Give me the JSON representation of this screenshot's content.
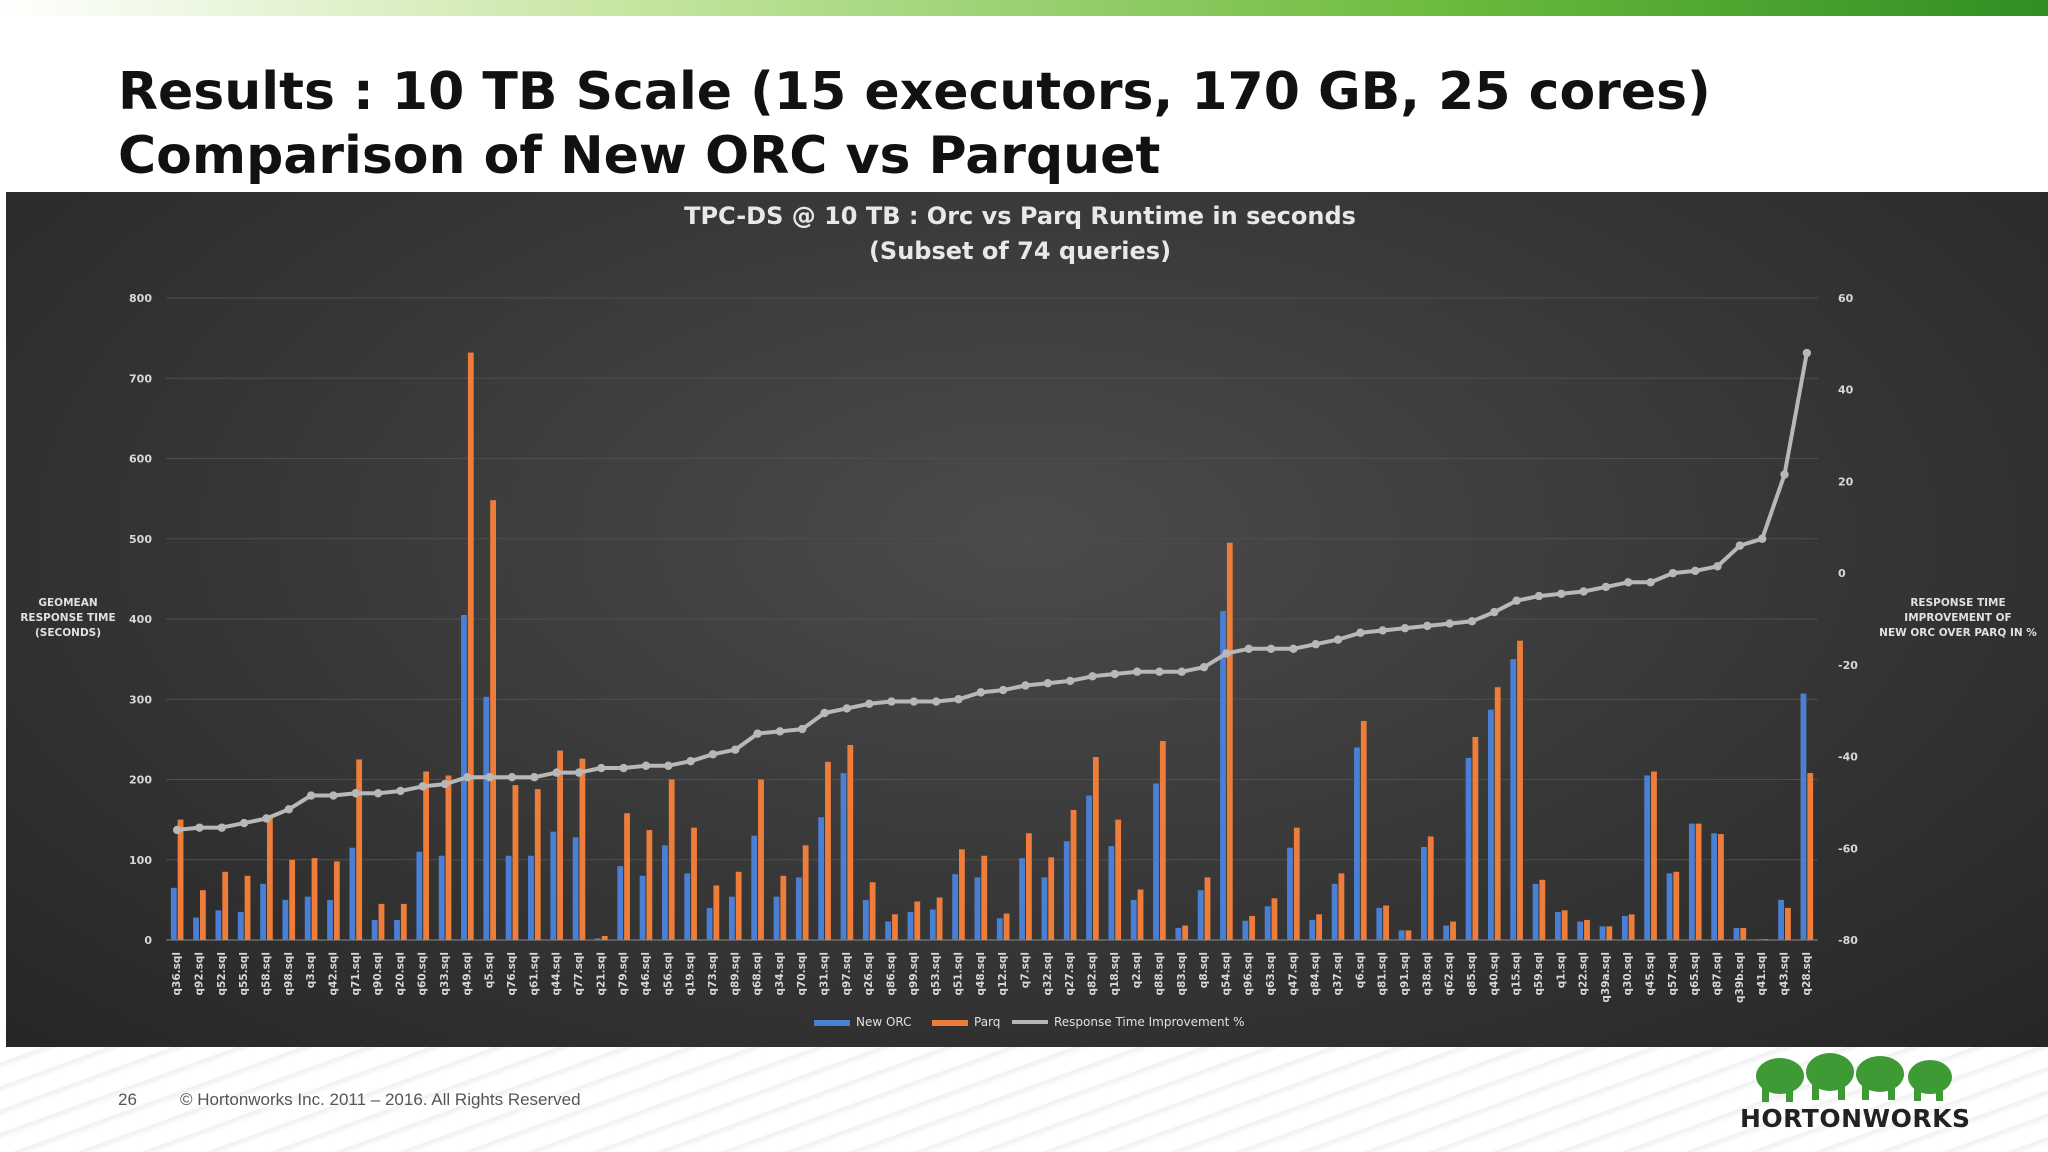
{
  "slide": {
    "title_line1": "Results : 10 TB Scale (15 executors, 170 GB, 25 cores)",
    "title_line2": "Comparison of New ORC vs Parquet",
    "page_number": "26",
    "copyright": "© Hortonworks Inc. 2011 – 2016. All Rights Reserved",
    "logo_text": "HORTONWORKS",
    "colors": {
      "accent": "#6dbb3f",
      "orc": "#4a7fd4",
      "parq": "#ee7d3c",
      "line": "#b8b8b8",
      "panel": "#363636"
    }
  },
  "chart_data": {
    "type": "bar",
    "title_line1": "TPC-DS @ 10 TB : Orc vs Parq Runtime in seconds",
    "title_line2": "(Subset of 74 queries)",
    "ylabel_left": [
      "GEOMEAN",
      "RESPONSE TIME",
      "(SECONDS)"
    ],
    "ylabel_right": [
      "RESPONSE TIME",
      "IMPROVEMENT OF",
      "NEW ORC OVER PARQ IN %"
    ],
    "ylim_left": [
      0,
      800
    ],
    "yticks_left": [
      0,
      100,
      200,
      300,
      400,
      500,
      600,
      700,
      800
    ],
    "ylim_right": [
      -80,
      60
    ],
    "yticks_right": [
      -80,
      -60,
      -40,
      -20,
      0,
      20,
      40,
      60
    ],
    "grid": true,
    "legend_position": "bottom",
    "categories": [
      "q36.sql",
      "q92.sql",
      "q52.sql",
      "q55.sql",
      "q58.sql",
      "q98.sql",
      "q3.sql",
      "q42.sql",
      "q71.sql",
      "q90.sql",
      "q20.sql",
      "q60.sql",
      "q33.sql",
      "q49.sql",
      "q5.sql",
      "q76.sql",
      "q61.sql",
      "q44.sql",
      "q77.sql",
      "q21.sql",
      "q79.sql",
      "q46.sql",
      "q56.sql",
      "q19.sql",
      "q73.sql",
      "q89.sql",
      "q68.sql",
      "q34.sql",
      "q70.sql",
      "q31.sql",
      "q97.sql",
      "q26.sql",
      "q86.sql",
      "q99.sql",
      "q53.sql",
      "q51.sql",
      "q48.sql",
      "q12.sql",
      "q7.sql",
      "q32.sql",
      "q27.sql",
      "q82.sql",
      "q18.sql",
      "q2.sql",
      "q88.sql",
      "q83.sql",
      "q8.sql",
      "q54.sql",
      "q96.sql",
      "q63.sql",
      "q47.sql",
      "q84.sql",
      "q37.sql",
      "q6.sql",
      "q81.sql",
      "q91.sql",
      "q38.sql",
      "q62.sql",
      "q85.sql",
      "q40.sql",
      "q15.sql",
      "q59.sql",
      "q1.sql",
      "q22.sql",
      "q39a.sql",
      "q30.sql",
      "q45.sql",
      "q57.sql",
      "q65.sql",
      "q87.sql",
      "q39b.sql",
      "q41.sql",
      "q43.sql",
      "q28.sql"
    ],
    "series": [
      {
        "name": "New ORC",
        "axis": "left",
        "type": "bar",
        "values": [
          65,
          28,
          37,
          35,
          70,
          50,
          54,
          50,
          115,
          25,
          25,
          110,
          105,
          405,
          303,
          105,
          105,
          135,
          128,
          2,
          92,
          80,
          118,
          83,
          40,
          54,
          130,
          54,
          78,
          153,
          208,
          50,
          23,
          35,
          38,
          82,
          78,
          27,
          102,
          78,
          123,
          180,
          117,
          50,
          195,
          15,
          62,
          410,
          24,
          42,
          115,
          25,
          70,
          240,
          40,
          12,
          116,
          18,
          227,
          287,
          350,
          70,
          35,
          23,
          17,
          30,
          205,
          83,
          145,
          133,
          15,
          1,
          50,
          307
        ]
      },
      {
        "name": "Parq",
        "axis": "left",
        "type": "bar",
        "values": [
          150,
          62,
          85,
          80,
          155,
          100,
          102,
          98,
          225,
          45,
          45,
          210,
          205,
          732,
          548,
          193,
          188,
          236,
          226,
          5,
          158,
          137,
          200,
          140,
          68,
          85,
          200,
          80,
          118,
          222,
          243,
          72,
          32,
          48,
          53,
          113,
          105,
          33,
          133,
          103,
          162,
          228,
          150,
          63,
          248,
          18,
          78,
          495,
          30,
          52,
          140,
          32,
          83,
          273,
          43,
          12,
          129,
          23,
          253,
          315,
          373,
          75,
          37,
          25,
          17,
          32,
          210,
          85,
          145,
          132,
          15,
          1,
          40,
          208
        ]
      },
      {
        "name": "Response Time Improvement %",
        "axis": "right",
        "type": "line",
        "values": [
          -56,
          -55.5,
          -55.5,
          -54.5,
          -53.5,
          -51.5,
          -48.5,
          -48.5,
          -48,
          -48,
          -47.5,
          -46.5,
          -46,
          -44.5,
          -44.5,
          -44.5,
          -44.5,
          -43.5,
          -43.5,
          -42.5,
          -42.5,
          -42,
          -42,
          -41,
          -39.5,
          -38.5,
          -35,
          -34.5,
          -34,
          -30.5,
          -29.5,
          -28.5,
          -28,
          -28,
          -28,
          -27.5,
          -26,
          -25.5,
          -24.5,
          -24,
          -23.5,
          -22.5,
          -22,
          -21.5,
          -21.5,
          -21.5,
          -20.5,
          -17.5,
          -16.5,
          -16.5,
          -16.5,
          -15.5,
          -14.5,
          -13,
          -12.5,
          -12,
          -11.5,
          -11,
          -10.5,
          -8.5,
          -6,
          -5,
          -4.5,
          -4,
          -3,
          -2,
          -2,
          0,
          0.5,
          1.5,
          6,
          7.5,
          21.5,
          48
        ]
      }
    ]
  }
}
